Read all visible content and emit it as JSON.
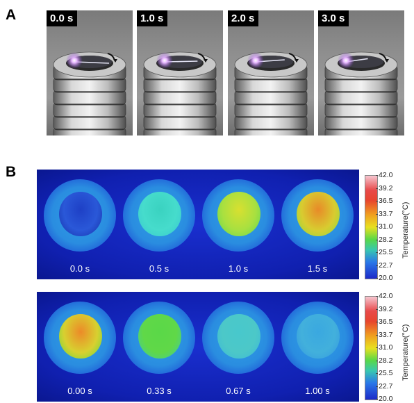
{
  "panels": {
    "a": {
      "label": "A",
      "frames": [
        {
          "time": "0.0 s",
          "rod_angle_deg": 0
        },
        {
          "time": "1.0 s",
          "rod_angle_deg": 25
        },
        {
          "time": "2.0 s",
          "rod_angle_deg": 45
        },
        {
          "time": "3.0 s",
          "rod_angle_deg": 70
        }
      ]
    },
    "b": {
      "label": "B",
      "rows": [
        {
          "frames": [
            {
              "time": "0.0 s",
              "inner_color": "#1e40c6",
              "inner_edge": "#1530a8",
              "inner_mid": "#2a58d8"
            },
            {
              "time": "0.5 s",
              "inner_color": "#3ad2c0",
              "inner_edge": "#38c8d0",
              "inner_mid": "#46dccc"
            },
            {
              "time": "1.0 s",
              "inner_color": "#d8e030",
              "inner_edge": "#60d850",
              "inner_mid": "#a8e040"
            },
            {
              "time": "1.5 s",
              "inner_color": "#e88a28",
              "inner_edge": "#88dc40",
              "inner_mid": "#d8cc30"
            }
          ]
        },
        {
          "frames": [
            {
              "time": "0.00 s",
              "inner_color": "#ec8a28",
              "inner_edge": "#60d840",
              "inner_mid": "#d8d030"
            },
            {
              "time": "0.33 s",
              "inner_color": "#5ad848",
              "inner_edge": "#40cca0",
              "inner_mid": "#60d848"
            },
            {
              "time": "0.67 s",
              "inner_color": "#48c8cc",
              "inner_edge": "#3cb8d8",
              "inner_mid": "#4cc8c8"
            },
            {
              "time": "1.00 s",
              "inner_color": "#3aa8e0",
              "inner_edge": "#3498e0",
              "inner_mid": "#42b0dc"
            }
          ]
        }
      ],
      "colorbar": {
        "title": "Temperature(°C)",
        "ticks": [
          "42.0",
          "39.2",
          "36.5",
          "33.7",
          "31.0",
          "28.2",
          "25.5",
          "22.7",
          "20.0"
        ]
      }
    }
  }
}
